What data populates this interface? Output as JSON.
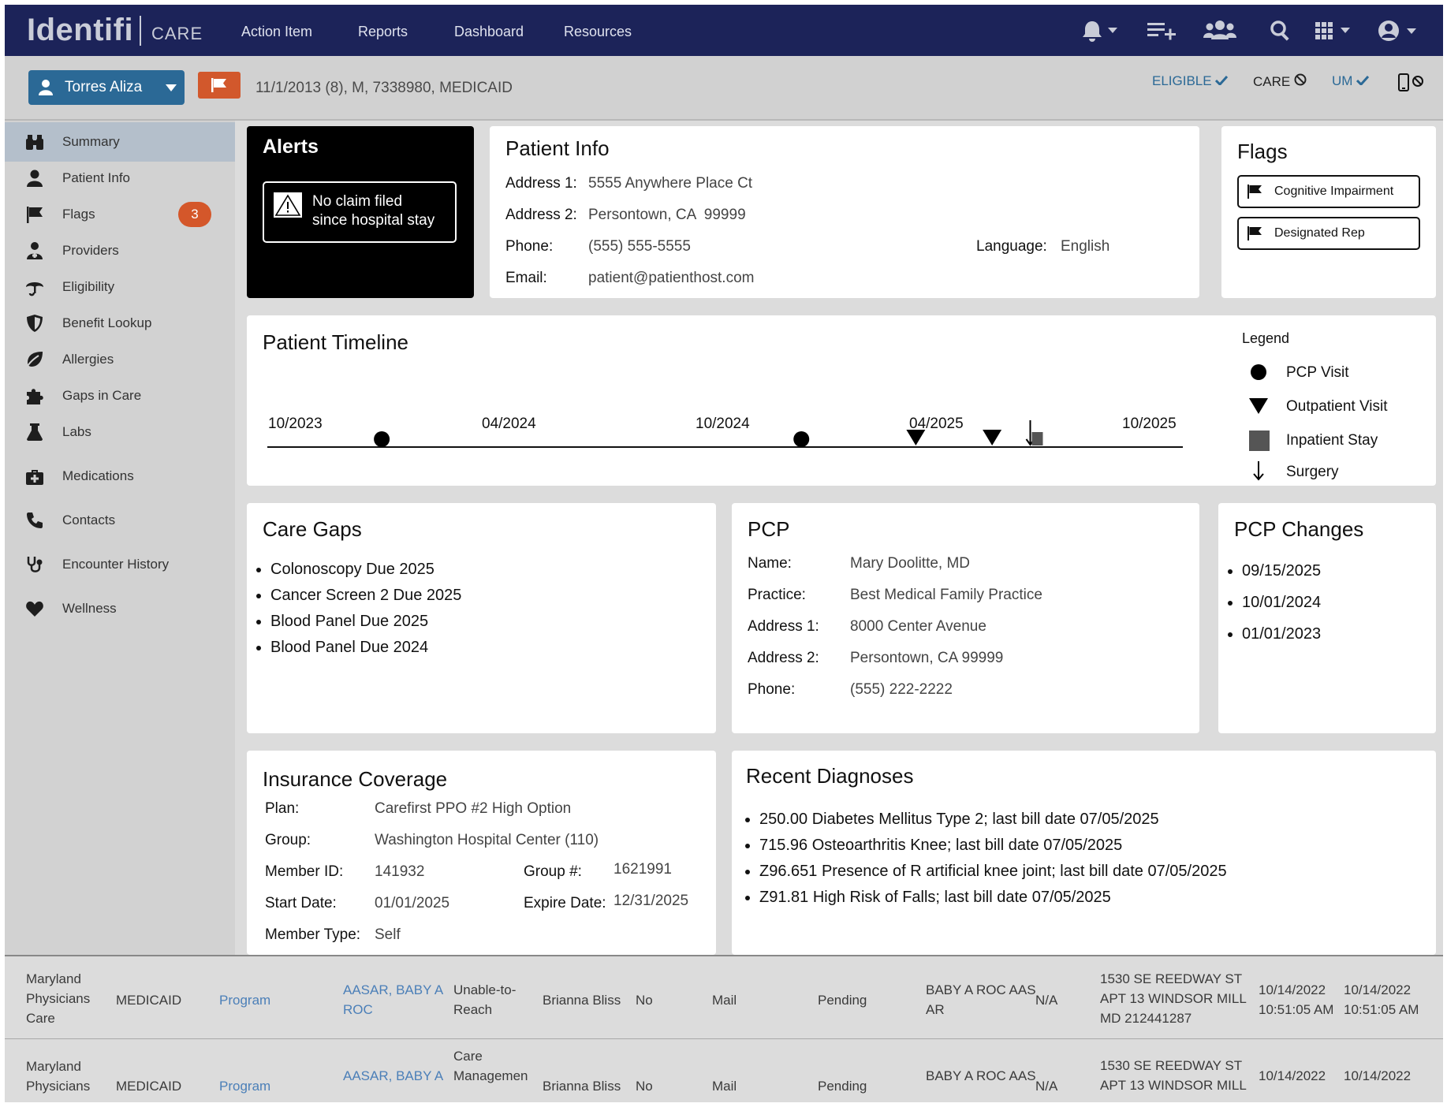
{
  "nav": {
    "logo": "Identifi",
    "logo_sub": "CARE",
    "links": [
      "Action Item",
      "Reports",
      "Dashboard",
      "Resources"
    ]
  },
  "patient_bar": {
    "patient_name": "Torres Aliza",
    "demographics": "11/1/2013 (8), M, 7338980, MEDICAID",
    "status": [
      {
        "label": "ELIGIBLE",
        "icon": "check-icon",
        "color": "#2b6996"
      },
      {
        "label": "CARE",
        "icon": "ban-icon",
        "color": "#222222"
      },
      {
        "label": "UM",
        "icon": "check-icon",
        "color": "#2b6996"
      }
    ]
  },
  "sidebar": {
    "items": [
      {
        "label": "Summary",
        "icon": "binoculars-icon"
      },
      {
        "label": "Patient Info",
        "icon": "user-icon"
      },
      {
        "label": "Flags",
        "icon": "flag-icon",
        "badge": "3"
      },
      {
        "label": "Providers",
        "icon": "doctor-icon"
      },
      {
        "label": "Eligibility",
        "icon": "umbrella-icon"
      },
      {
        "label": "Benefit Lookup",
        "icon": "shield-icon"
      },
      {
        "label": "Allergies",
        "icon": "leaf-icon"
      },
      {
        "label": "Gaps in Care",
        "icon": "puzzle-icon"
      },
      {
        "label": "Labs",
        "icon": "flask-icon"
      },
      {
        "label": "Medications",
        "icon": "medkit-icon"
      },
      {
        "label": "Contacts",
        "icon": "phone-icon"
      },
      {
        "label": "Encounter History",
        "icon": "stethoscope-icon"
      },
      {
        "label": "Wellness",
        "icon": "heart-icon"
      }
    ]
  },
  "alerts": {
    "title": "Alerts",
    "message_line1": "No claim filed",
    "message_line2": "since hospital stay"
  },
  "patient_info": {
    "title": "Patient Info",
    "address1_label": "Address 1:",
    "address1": "5555 Anywhere Place Ct",
    "address2_label": "Address 2:",
    "address2": "Persontown, CA  99999",
    "phone_label": "Phone:",
    "phone": "(555) 555-5555",
    "email_label": "Email:",
    "email": "patient@patienthost.com",
    "language_label": "Language:",
    "language": "English"
  },
  "flags": {
    "title": "Flags",
    "items": [
      "Cognitive Impairment",
      "Designated Rep"
    ]
  },
  "timeline": {
    "title": "Patient Timeline",
    "axis_labels": [
      "10/2023",
      "04/2024",
      "10/2024",
      "04/2025",
      "10/2025"
    ],
    "range": [
      "2023-10",
      "2025-10"
    ],
    "events": [
      {
        "type": "pcp",
        "date": "2024-01"
      },
      {
        "type": "pcp",
        "date": "2024-12"
      },
      {
        "type": "outpatient",
        "date": "2025-03"
      },
      {
        "type": "outpatient",
        "date": "2025-05"
      },
      {
        "type": "surgery",
        "date": "2025-06"
      },
      {
        "type": "inpatient",
        "date": "2025-06"
      }
    ],
    "legend_title": "Legend",
    "legend": [
      {
        "type": "pcp",
        "label": "PCP Visit"
      },
      {
        "type": "outpatient",
        "label": "Outpatient Visit"
      },
      {
        "type": "inpatient",
        "label": "Inpatient Stay"
      },
      {
        "type": "surgery",
        "label": "Surgery"
      }
    ]
  },
  "care_gaps": {
    "title": "Care Gaps",
    "items": [
      "Colonoscopy Due 2025",
      "Cancer Screen 2 Due 2025",
      "Blood Panel Due 2025",
      "Blood Panel Due 2024"
    ]
  },
  "pcp": {
    "title": "PCP",
    "name_label": "Name:",
    "name": "Mary Doolitte, MD",
    "practice_label": "Practice:",
    "practice": "Best Medical Family Practice",
    "address1_label": "Address 1:",
    "address1": "8000 Center Avenue",
    "address2_label": "Address 2:",
    "address2": "Persontown, CA 99999",
    "phone_label": "Phone:",
    "phone": "(555) 222-2222"
  },
  "pcp_changes": {
    "title": "PCP Changes",
    "items": [
      "09/15/2025",
      "10/01/2024",
      "01/01/2023"
    ]
  },
  "insurance": {
    "title": "Insurance Coverage",
    "plan_label": "Plan:",
    "plan": "Carefirst PPO #2 High Option",
    "group_label": "Group:",
    "group": "Washington Hospital Center (110)",
    "member_id_label": "Member ID:",
    "member_id": "141932",
    "group_no_label": "Group #:",
    "group_no": "1621991",
    "start_label": "Start Date:",
    "start": "01/01/2025",
    "expire_label": "Expire Date:",
    "expire": "12/31/2025",
    "member_type_label": "Member Type:",
    "member_type": "Self"
  },
  "diagnoses": {
    "title": "Recent Diagnoses",
    "items": [
      "250.00 Diabetes Mellitus Type 2; last bill date 07/05/2025",
      "715.96 Osteoarthritis Knee; last bill date 07/05/2025",
      "Z96.651 Presence of R artificial knee joint; last bill date 07/05/2025",
      "Z91.81 High Risk of Falls; last bill date 07/05/2025"
    ]
  },
  "bottom_table": {
    "rows": [
      {
        "org": [
          "Maryland",
          "Physicians",
          "Care"
        ],
        "payer": "MEDICAID",
        "program": "Program",
        "member": [
          "AASAR, BABY A",
          "ROC"
        ],
        "status": [
          "Unable-to-",
          "Reach"
        ],
        "assignee": "Brianna Bliss",
        "flag": "No",
        "method": "Mail",
        "state": "Pending",
        "name2": [
          "BABY A ROC AAS",
          "AR"
        ],
        "na": "N/A",
        "address": [
          "1530 SE REEDWAY ST",
          "APT 13 WINDSOR MILL",
          "MD 212441287"
        ],
        "date1": [
          "10/14/2022",
          "10:51:05 AM"
        ],
        "date2": [
          "10/14/2022",
          "10:51:05 AM"
        ]
      },
      {
        "org": [
          "Maryland",
          "Physicians"
        ],
        "payer": "MEDICAID",
        "program": "Program",
        "member": [
          "AASAR, BABY A"
        ],
        "status": [
          "Care",
          "Managemen"
        ],
        "assignee": "Brianna Bliss",
        "flag": "No",
        "method": "Mail",
        "state": "Pending",
        "name2": [
          "BABY A ROC AAS"
        ],
        "na": "N/A",
        "address": [
          "1530 SE REEDWAY ST",
          "APT 13 WINDSOR MILL"
        ],
        "date1": [
          "10/14/2022"
        ],
        "date2": [
          "10/14/2022"
        ]
      }
    ]
  }
}
